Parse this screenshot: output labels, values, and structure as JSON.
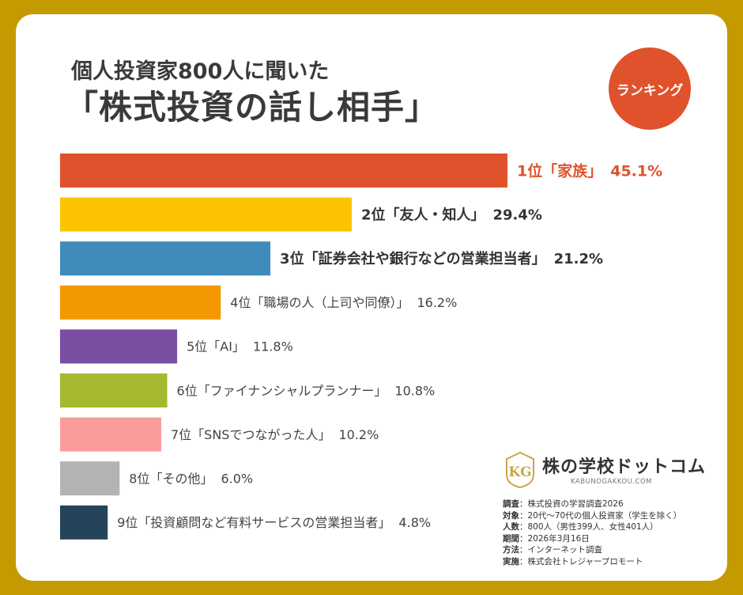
{
  "header": {
    "subtitle": "個人投資家800人に聞いた",
    "title": "「株式投資の話し相手」",
    "badge": "ランキング"
  },
  "chart_data": {
    "type": "bar",
    "orientation": "horizontal",
    "categories": [
      "1位「家族」",
      "2位「友人・知人」",
      "3位「証券会社や銀行などの営業担当者」",
      "4位「職場の人（上司や同僚）」",
      "5位「AI」",
      "6位「ファイナンシャルプランナー」",
      "7位「SNSでつながった人」",
      "8位「その他」",
      "9位「投資顧問など有料サービスの営業担当者」"
    ],
    "values": [
      45.1,
      29.4,
      21.2,
      16.2,
      11.8,
      10.8,
      10.2,
      6.0,
      4.8
    ],
    "value_labels": [
      "45.1%",
      "29.4%",
      "21.2%",
      "16.2%",
      "11.8%",
      "10.8%",
      "10.2%",
      "6.0%",
      "4.8%"
    ],
    "colors": [
      "#e0522c",
      "#fcc400",
      "#3f8cba",
      "#f39800",
      "#7a4ea3",
      "#a6b82f",
      "#f99c9a",
      "#b3b3b3",
      "#244459"
    ],
    "label_colors": [
      "#e0522c",
      "#333333",
      "#333333",
      "#444444",
      "#444444",
      "#444444",
      "#444444",
      "#444444",
      "#444444"
    ],
    "title": "「株式投資の話し相手」",
    "xlim": [
      0,
      45.1
    ],
    "grid": false,
    "legend": "none"
  },
  "logo": {
    "name": "株の学校ドットコム",
    "url": "KABUNOGAKKOU.COM",
    "mark": "KG"
  },
  "survey_notes": [
    {
      "key": "調査",
      "value": "株式投資の学習調査2026"
    },
    {
      "key": "対象",
      "value": "20代〜70代の個人投資家（学生を除く）"
    },
    {
      "key": "人数",
      "value": "800人（男性399人、女性401人）"
    },
    {
      "key": "期間",
      "value": "2026年3月16日"
    },
    {
      "key": "方法",
      "value": "インターネット調査"
    },
    {
      "key": "実施",
      "value": "株式会社トレジャープロモート"
    }
  ]
}
